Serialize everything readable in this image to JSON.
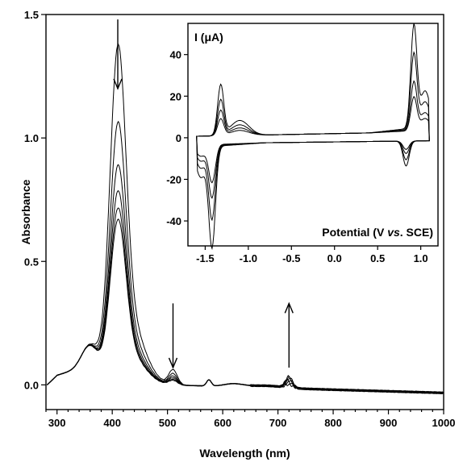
{
  "chart_data": [
    {
      "type": "line",
      "xlabel": "Wavelength (nm)",
      "ylabel": "Absorbance",
      "xlim": [
        280,
        1000
      ],
      "ylim": [
        -0.1,
        1.5
      ],
      "xticks": [
        "300",
        "400",
        "500",
        "600",
        "700",
        "800",
        "900",
        "1000"
      ],
      "yticks": [
        "0.0",
        "0.5",
        "1.0",
        "1.5"
      ],
      "xtick_values": [
        300,
        400,
        500,
        600,
        700,
        800,
        900,
        1000
      ],
      "ytick_values": [
        0.0,
        0.5,
        1.0,
        1.5
      ],
      "annotations": [
        {
          "type": "arrow",
          "direction": "down",
          "x": 410
        },
        {
          "type": "arrow",
          "direction": "down",
          "x": 510
        },
        {
          "type": "arrow",
          "direction": "up",
          "x": 720
        }
      ],
      "series": [
        {
          "peak": 1.18,
          "q510": 0.06,
          "q720": 0.012
        },
        {
          "peak": 0.91,
          "q510": 0.045,
          "q720": 0.022
        },
        {
          "peak": 0.76,
          "q510": 0.035,
          "q720": 0.03
        },
        {
          "peak": 0.67,
          "q510": 0.028,
          "q720": 0.036
        },
        {
          "peak": 0.61,
          "q510": 0.022,
          "q720": 0.041
        },
        {
          "peak": 0.57,
          "q510": 0.018,
          "q720": 0.046
        }
      ]
    },
    {
      "type": "line",
      "title": "I (μA)",
      "xlabel": "Potential (V vs. SCE)",
      "xlabel_parts": [
        "Potential (V ",
        "vs",
        ". SCE)"
      ],
      "xlim": [
        -1.7,
        1.2
      ],
      "ylim": [
        -52,
        55
      ],
      "xticks": [
        "-1.5",
        "-1.0",
        "-0.5",
        "0.0",
        "0.5",
        "1.0"
      ],
      "yticks": [
        "-40",
        "-20",
        "0",
        "20",
        "40"
      ],
      "xtick_values": [
        -1.5,
        -1.0,
        -0.5,
        0.0,
        0.5,
        1.0
      ],
      "ytick_values": [
        -40,
        -20,
        0,
        20,
        40
      ],
      "series": [
        {
          "cathodic_peak": -48,
          "anodic_peak": 24,
          "ox_peak": 49,
          "ox_return": -12
        },
        {
          "cathodic_peak": -35,
          "anodic_peak": 17,
          "ox_peak": 36,
          "ox_return": -9
        },
        {
          "cathodic_peak": -25,
          "anodic_peak": 12,
          "ox_peak": 23,
          "ox_return": -6
        },
        {
          "cathodic_peak": -18,
          "anodic_peak": 8,
          "ox_peak": 16,
          "ox_return": -4
        }
      ]
    }
  ]
}
